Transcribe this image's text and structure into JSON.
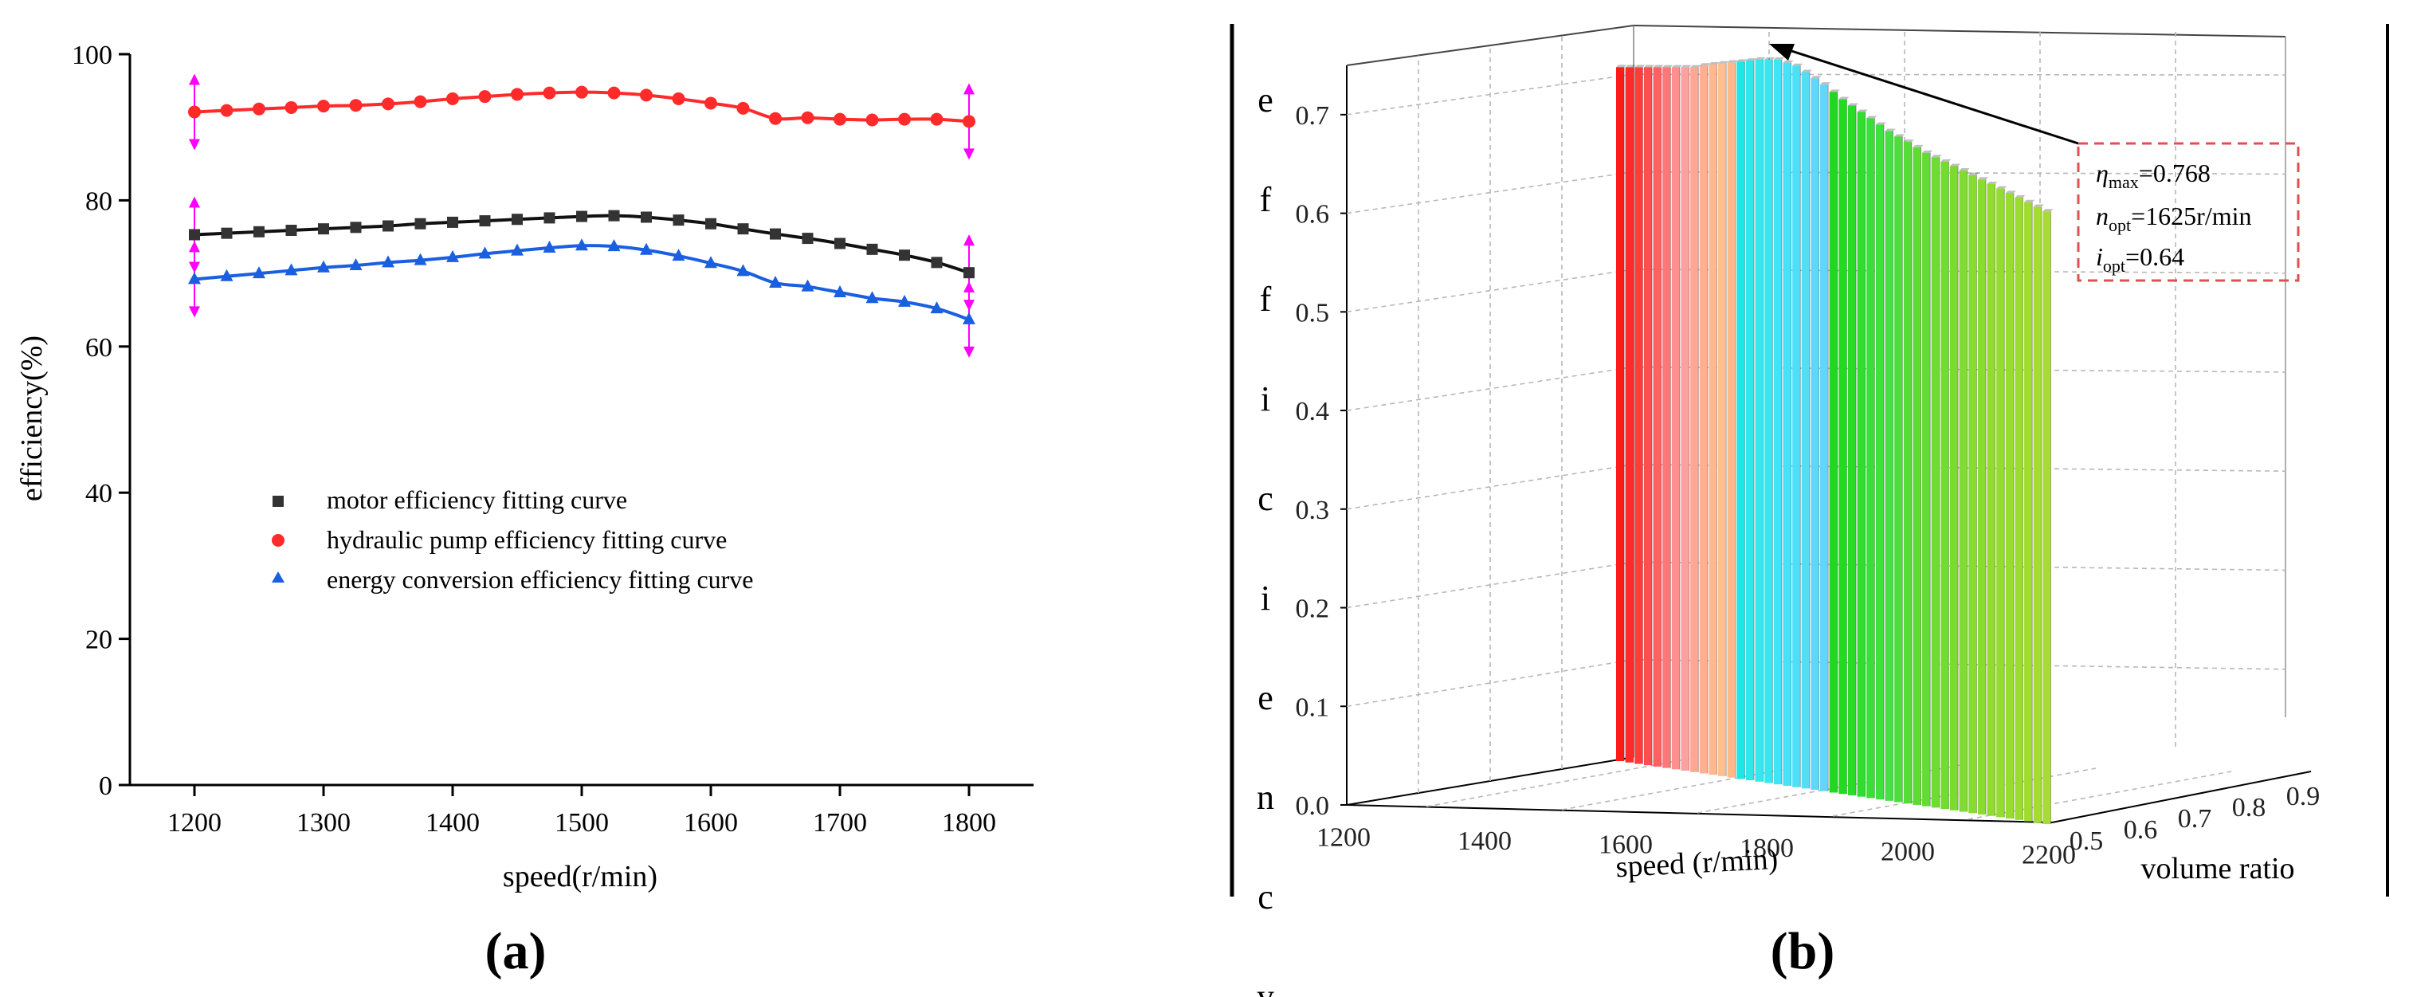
{
  "chart_data": [
    {
      "panel": "(a)",
      "type": "line",
      "xlabel": "speed(r/min)",
      "ylabel": "efficiency(%)",
      "xlim": [
        1150,
        1850
      ],
      "ylim": [
        0,
        100
      ],
      "xticks": [
        1200,
        1300,
        1400,
        1500,
        1600,
        1700,
        1800
      ],
      "yticks": [
        0,
        20,
        40,
        60,
        80,
        100
      ],
      "legend_position": "center-left",
      "x": [
        1200,
        1225,
        1250,
        1275,
        1300,
        1325,
        1350,
        1375,
        1400,
        1425,
        1450,
        1475,
        1500,
        1525,
        1550,
        1575,
        1600,
        1625,
        1650,
        1675,
        1700,
        1725,
        1750,
        1775,
        1800
      ],
      "series": [
        {
          "name": "motor efficiency fitting curve",
          "marker": "square",
          "color": "#333333",
          "values": [
            75.3,
            75.5,
            75.7,
            75.9,
            76.1,
            76.3,
            76.5,
            76.8,
            77.0,
            77.2,
            77.4,
            77.6,
            77.8,
            77.9,
            77.7,
            77.3,
            76.8,
            76.1,
            75.4,
            74.8,
            74.1,
            73.3,
            72.5,
            71.5,
            70.1
          ]
        },
        {
          "name": "hydraulic pump efficiency fitting curve",
          "marker": "circle",
          "color": "#ff2a2a",
          "values": [
            92.1,
            92.3,
            92.5,
            92.7,
            92.9,
            93.0,
            93.2,
            93.5,
            93.9,
            94.2,
            94.5,
            94.7,
            94.8,
            94.7,
            94.4,
            93.9,
            93.3,
            92.6,
            91.2,
            91.3,
            91.1,
            91.0,
            91.1,
            91.1,
            90.8
          ]
        },
        {
          "name": "energy conversion efficiency fitting curve",
          "marker": "triangle",
          "color": "#1a5fe0",
          "values": [
            69.2,
            69.6,
            70.0,
            70.4,
            70.8,
            71.1,
            71.5,
            71.8,
            72.2,
            72.7,
            73.1,
            73.5,
            73.8,
            73.7,
            73.2,
            72.4,
            71.4,
            70.3,
            68.7,
            68.2,
            67.4,
            66.6,
            66.1,
            65.2,
            63.7
          ]
        }
      ],
      "error_markers": {
        "x": [
          1200,
          1800
        ],
        "color": "#ff00ff"
      }
    },
    {
      "panel": "(b)",
      "type": "bar3d",
      "xlabel": "speed (r/min)",
      "ylabel": "volume ratio",
      "zlabel_letters": [
        "e",
        "f",
        "f",
        "i",
        "c",
        "i",
        "e",
        "n",
        "c",
        "y"
      ],
      "xticks": [
        1200,
        1400,
        1600,
        1800,
        2000,
        2200
      ],
      "yticks": [
        0.5,
        0.6,
        0.7,
        0.8,
        0.9
      ],
      "zticks": [
        "0.0",
        "0.1",
        "0.2",
        "0.3",
        "0.4",
        "0.5",
        "0.6",
        "0.7"
      ],
      "zlim": [
        0,
        0.75
      ],
      "bars": {
        "speeds": [
          1500,
          1515,
          1530,
          1545,
          1560,
          1575,
          1590,
          1605,
          1620,
          1635,
          1650,
          1665,
          1680,
          1695,
          1710,
          1725,
          1740,
          1755,
          1770,
          1785,
          1800,
          1815,
          1830,
          1845,
          1860,
          1875,
          1890,
          1905,
          1920,
          1935,
          1950,
          1965,
          1980,
          1995,
          2010,
          2025,
          2040,
          2055,
          2070,
          2085,
          2100,
          2115,
          2130,
          2145,
          2160,
          2175,
          2190
        ],
        "efficiency": [
          0.7,
          0.7,
          0.7,
          0.7,
          0.7,
          0.7,
          0.7,
          0.7,
          0.7,
          0.702,
          0.703,
          0.704,
          0.705,
          0.706,
          0.707,
          0.708,
          0.708,
          0.708,
          0.705,
          0.702,
          0.696,
          0.69,
          0.684,
          0.677,
          0.67,
          0.664,
          0.658,
          0.652,
          0.646,
          0.64,
          0.635,
          0.63,
          0.625,
          0.62,
          0.616,
          0.612,
          0.608,
          0.604,
          0.6,
          0.596,
          0.592,
          0.588,
          0.584,
          0.58,
          0.576,
          0.572,
          0.568
        ],
        "colors": [
          "#ff1a1a",
          "#ff2a2a",
          "#ff3c3c",
          "#ff4e4e",
          "#ff6060",
          "#ff7777",
          "#ff8f8f",
          "#ffa0a0",
          "#ffa890",
          "#ffb090",
          "#ffb890",
          "#ffc090",
          "#ffb88a",
          "#1fe6e6",
          "#2ee8ea",
          "#33e8ef",
          "#38e6f2",
          "#3de5f5",
          "#45e2f8",
          "#4ddff8",
          "#55dcf8",
          "#5ed8f8",
          "#66d4f8",
          "#1fd81f",
          "#22da22",
          "#28dc28",
          "#2fde2f",
          "#36e036",
          "#3ee23e",
          "#46e046",
          "#4ede3a",
          "#56dc36",
          "#5edc34",
          "#66dc32",
          "#6edc30",
          "#74dc30",
          "#7adc30",
          "#80dc30",
          "#86dc30",
          "#8cdc30",
          "#90dc30",
          "#94dc30",
          "#98dc30",
          "#9cdc30",
          "#a0dc30",
          "#a4dc30",
          "#a8dc30"
        ]
      },
      "annotation": {
        "eta_max": "0.768",
        "n_opt": "1625r/min",
        "i_opt": "0.64"
      }
    }
  ],
  "captions": {
    "a": "(a)",
    "b": "(b)"
  }
}
